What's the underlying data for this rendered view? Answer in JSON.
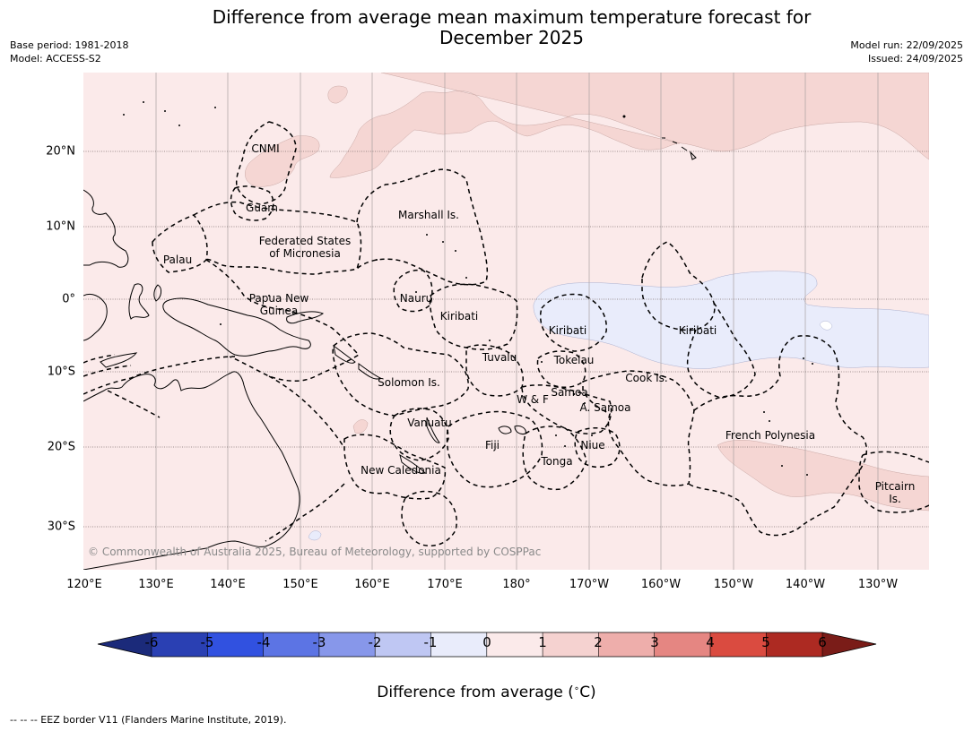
{
  "title": "Difference from average mean maximum temperature forecast for December 2025",
  "title_lines": [
    "Difference from average mean maximum temperature forecast for",
    "December 2025"
  ],
  "base_period": "Base period: 1981-2018",
  "model": "Model: ACCESS-S2",
  "model_run": "Model run: 22/09/2025",
  "issued": "Issued: 24/09/2025",
  "lon_labels": [
    "120°E",
    "130°E",
    "140°E",
    "150°E",
    "160°E",
    "170°E",
    "180°",
    "170°W",
    "160°W",
    "150°W",
    "140°W",
    "130°W"
  ],
  "lat_labels": [
    "20°N",
    "10°N",
    "0°",
    "10°S",
    "20°S",
    "30°S"
  ],
  "places": [
    {
      "name": "CNMI",
      "lines": [
        "CNMI"
      ]
    },
    {
      "name": "Guam",
      "lines": [
        "Guam"
      ]
    },
    {
      "name": "Marshall Is.",
      "lines": [
        "Marshall Is."
      ]
    },
    {
      "name": "Federated States of Micronesia",
      "lines": [
        "Federated States",
        "of Micronesia"
      ]
    },
    {
      "name": "Palau",
      "lines": [
        "Palau"
      ]
    },
    {
      "name": "Papua New Guinea",
      "lines": [
        "Papua New",
        "Guinea"
      ]
    },
    {
      "name": "Nauru",
      "lines": [
        "Nauru"
      ]
    },
    {
      "name": "Kiribati",
      "lines": [
        "Kiribati"
      ]
    },
    {
      "name": "Kiribati",
      "lines": [
        "Kiribati"
      ]
    },
    {
      "name": "Kiribati",
      "lines": [
        "Kiribati"
      ]
    },
    {
      "name": "Tuvalu",
      "lines": [
        "Tuvalu"
      ]
    },
    {
      "name": "Tokelau",
      "lines": [
        "Tokelau"
      ]
    },
    {
      "name": "Cook Is.",
      "lines": [
        "Cook Is."
      ]
    },
    {
      "name": "Solomon Is.",
      "lines": [
        "Solomon Is."
      ]
    },
    {
      "name": "Samoa",
      "lines": [
        "Samoa"
      ]
    },
    {
      "name": "W & F",
      "lines": [
        "W & F"
      ]
    },
    {
      "name": "A. Samoa",
      "lines": [
        "A. Samoa"
      ]
    },
    {
      "name": "Vanuatu",
      "lines": [
        "Vanuatu"
      ]
    },
    {
      "name": "Fiji",
      "lines": [
        "Fiji"
      ]
    },
    {
      "name": "Niue",
      "lines": [
        "Niue"
      ]
    },
    {
      "name": "Tonga",
      "lines": [
        "Tonga"
      ]
    },
    {
      "name": "French Polynesia",
      "lines": [
        "French Polynesia"
      ]
    },
    {
      "name": "New Caledonia",
      "lines": [
        "New Caledonia"
      ]
    },
    {
      "name": "Pitcairn Is.",
      "lines": [
        "Pitcairn",
        "Is."
      ]
    }
  ],
  "copyright": "© Commonwealth of Australia 2025, Bureau of Meteorology, supported by COSPPac",
  "colorbar": {
    "ticks": [
      "-6",
      "-5",
      "-4",
      "-3",
      "-2",
      "-1",
      "0",
      "1",
      "2",
      "3",
      "4",
      "5",
      "6"
    ],
    "colors": [
      "#1b2a7a",
      "#2a40b3",
      "#3151e0",
      "#5c74e4",
      "#8797ea",
      "#bfc7f3",
      "#e9ecfb",
      "#fbeaea",
      "#f5d2d0",
      "#eeaeab",
      "#e58682",
      "#da4b40",
      "#ad2a22",
      "#7a1c18"
    ],
    "title": "Difference from average (°C)",
    "title_text": "Difference from average (",
    "title_unit": "C)"
  },
  "footnote": "--  --  -- EEZ border V11 (Flanders Marine Institute, 2019).",
  "colors": {
    "background_anomaly": "#fbeaea",
    "warm_anomaly": "#f5d6d3",
    "cool_anomaly": "#e9ecfb"
  }
}
